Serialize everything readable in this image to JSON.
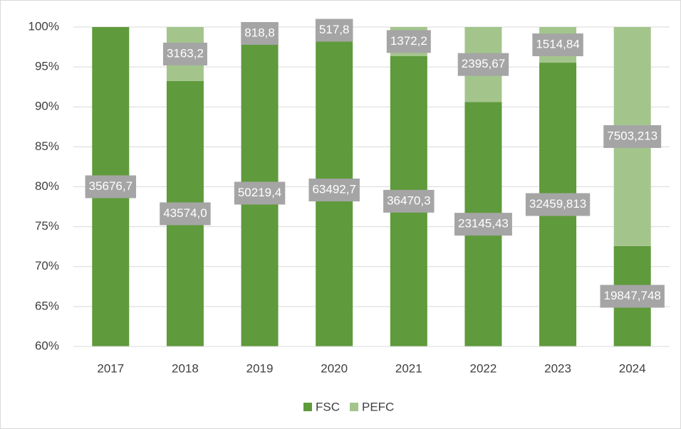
{
  "chart_data": {
    "type": "bar",
    "stack": "percent",
    "categories": [
      "2017",
      "2018",
      "2019",
      "2020",
      "2021",
      "2022",
      "2023",
      "2024"
    ],
    "series": [
      {
        "name": "FSC",
        "color": "#5f9a3c",
        "values": [
          35676.7,
          43574.0,
          50219.4,
          63492.7,
          36470.3,
          23145.43,
          32459.813,
          19847.748
        ],
        "value_labels": [
          "35676,7",
          "43574,0",
          "50219,4",
          "63492,7",
          "36470,3",
          "23145,43",
          "32459,813",
          "19847,748"
        ]
      },
      {
        "name": "PEFC",
        "color": "#a3c58c",
        "values": [
          0,
          3163.2,
          818.8,
          517.8,
          1372.2,
          2395.67,
          1514.84,
          7503.213
        ],
        "value_labels": [
          null,
          "3163,2",
          "818,8",
          "517,8",
          "1372,2",
          "2395,67",
          "1514,84",
          "7503,213"
        ]
      }
    ],
    "ylim": [
      60,
      100
    ],
    "yticks": [
      {
        "value": 60,
        "label": "60%"
      },
      {
        "value": 65,
        "label": "65%"
      },
      {
        "value": 70,
        "label": "70%"
      },
      {
        "value": 75,
        "label": "75%"
      },
      {
        "value": 80,
        "label": "80%"
      },
      {
        "value": 85,
        "label": "85%"
      },
      {
        "value": 90,
        "label": "90%"
      },
      {
        "value": 95,
        "label": "95%"
      },
      {
        "value": 100,
        "label": "100%"
      }
    ],
    "grid": true,
    "legend": "bottom"
  }
}
